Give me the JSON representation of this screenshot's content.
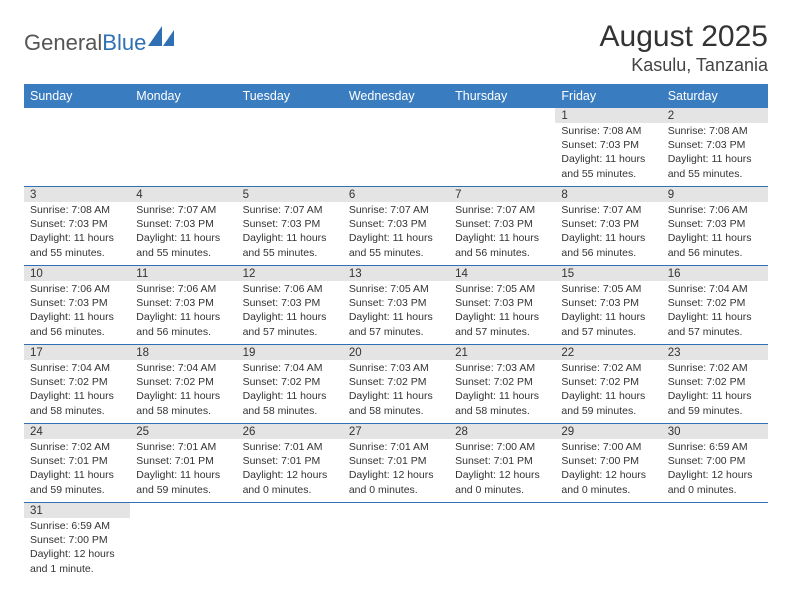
{
  "logo": {
    "text1": "General",
    "text2": "Blue"
  },
  "title": "August 2025",
  "location": "Kasulu, Tanzania",
  "colors": {
    "header_bg": "#3a7cc0",
    "day_header_bg": "#e4e4e4",
    "border": "#2f6fb3",
    "logo_blue": "#2f6fb3"
  },
  "weekdays": [
    "Sunday",
    "Monday",
    "Tuesday",
    "Wednesday",
    "Thursday",
    "Friday",
    "Saturday"
  ],
  "weeks": [
    [
      null,
      null,
      null,
      null,
      null,
      {
        "n": "1",
        "sunrise": "7:08 AM",
        "sunset": "7:03 PM",
        "daylight": "11 hours and 55 minutes."
      },
      {
        "n": "2",
        "sunrise": "7:08 AM",
        "sunset": "7:03 PM",
        "daylight": "11 hours and 55 minutes."
      }
    ],
    [
      {
        "n": "3",
        "sunrise": "7:08 AM",
        "sunset": "7:03 PM",
        "daylight": "11 hours and 55 minutes."
      },
      {
        "n": "4",
        "sunrise": "7:07 AM",
        "sunset": "7:03 PM",
        "daylight": "11 hours and 55 minutes."
      },
      {
        "n": "5",
        "sunrise": "7:07 AM",
        "sunset": "7:03 PM",
        "daylight": "11 hours and 55 minutes."
      },
      {
        "n": "6",
        "sunrise": "7:07 AM",
        "sunset": "7:03 PM",
        "daylight": "11 hours and 55 minutes."
      },
      {
        "n": "7",
        "sunrise": "7:07 AM",
        "sunset": "7:03 PM",
        "daylight": "11 hours and 56 minutes."
      },
      {
        "n": "8",
        "sunrise": "7:07 AM",
        "sunset": "7:03 PM",
        "daylight": "11 hours and 56 minutes."
      },
      {
        "n": "9",
        "sunrise": "7:06 AM",
        "sunset": "7:03 PM",
        "daylight": "11 hours and 56 minutes."
      }
    ],
    [
      {
        "n": "10",
        "sunrise": "7:06 AM",
        "sunset": "7:03 PM",
        "daylight": "11 hours and 56 minutes."
      },
      {
        "n": "11",
        "sunrise": "7:06 AM",
        "sunset": "7:03 PM",
        "daylight": "11 hours and 56 minutes."
      },
      {
        "n": "12",
        "sunrise": "7:06 AM",
        "sunset": "7:03 PM",
        "daylight": "11 hours and 57 minutes."
      },
      {
        "n": "13",
        "sunrise": "7:05 AM",
        "sunset": "7:03 PM",
        "daylight": "11 hours and 57 minutes."
      },
      {
        "n": "14",
        "sunrise": "7:05 AM",
        "sunset": "7:03 PM",
        "daylight": "11 hours and 57 minutes."
      },
      {
        "n": "15",
        "sunrise": "7:05 AM",
        "sunset": "7:03 PM",
        "daylight": "11 hours and 57 minutes."
      },
      {
        "n": "16",
        "sunrise": "7:04 AM",
        "sunset": "7:02 PM",
        "daylight": "11 hours and 57 minutes."
      }
    ],
    [
      {
        "n": "17",
        "sunrise": "7:04 AM",
        "sunset": "7:02 PM",
        "daylight": "11 hours and 58 minutes."
      },
      {
        "n": "18",
        "sunrise": "7:04 AM",
        "sunset": "7:02 PM",
        "daylight": "11 hours and 58 minutes."
      },
      {
        "n": "19",
        "sunrise": "7:04 AM",
        "sunset": "7:02 PM",
        "daylight": "11 hours and 58 minutes."
      },
      {
        "n": "20",
        "sunrise": "7:03 AM",
        "sunset": "7:02 PM",
        "daylight": "11 hours and 58 minutes."
      },
      {
        "n": "21",
        "sunrise": "7:03 AM",
        "sunset": "7:02 PM",
        "daylight": "11 hours and 58 minutes."
      },
      {
        "n": "22",
        "sunrise": "7:02 AM",
        "sunset": "7:02 PM",
        "daylight": "11 hours and 59 minutes."
      },
      {
        "n": "23",
        "sunrise": "7:02 AM",
        "sunset": "7:02 PM",
        "daylight": "11 hours and 59 minutes."
      }
    ],
    [
      {
        "n": "24",
        "sunrise": "7:02 AM",
        "sunset": "7:01 PM",
        "daylight": "11 hours and 59 minutes."
      },
      {
        "n": "25",
        "sunrise": "7:01 AM",
        "sunset": "7:01 PM",
        "daylight": "11 hours and 59 minutes."
      },
      {
        "n": "26",
        "sunrise": "7:01 AM",
        "sunset": "7:01 PM",
        "daylight": "12 hours and 0 minutes."
      },
      {
        "n": "27",
        "sunrise": "7:01 AM",
        "sunset": "7:01 PM",
        "daylight": "12 hours and 0 minutes."
      },
      {
        "n": "28",
        "sunrise": "7:00 AM",
        "sunset": "7:01 PM",
        "daylight": "12 hours and 0 minutes."
      },
      {
        "n": "29",
        "sunrise": "7:00 AM",
        "sunset": "7:00 PM",
        "daylight": "12 hours and 0 minutes."
      },
      {
        "n": "30",
        "sunrise": "6:59 AM",
        "sunset": "7:00 PM",
        "daylight": "12 hours and 0 minutes."
      }
    ],
    [
      {
        "n": "31",
        "sunrise": "6:59 AM",
        "sunset": "7:00 PM",
        "daylight": "12 hours and 1 minute."
      },
      null,
      null,
      null,
      null,
      null,
      null
    ]
  ],
  "labels": {
    "sunrise": "Sunrise: ",
    "sunset": "Sunset: ",
    "daylight": "Daylight: "
  }
}
